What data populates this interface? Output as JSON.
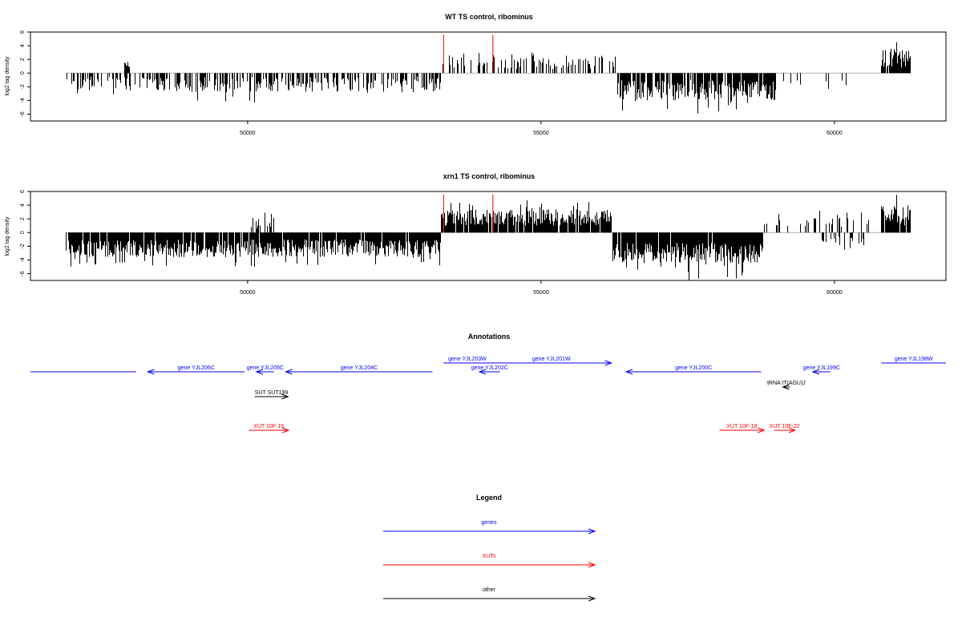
{
  "chart_data": [
    {
      "type": "bar",
      "title": "WT TS control, ribominus",
      "ylabel": "log2 tag density",
      "xlim": [
        46300,
        61900
      ],
      "ylim": [
        -7,
        6
      ],
      "x_ticks": [
        50000,
        55000,
        60000
      ],
      "x_tick_labels": [
        "50000",
        "55000",
        "60000"
      ],
      "y_ticks": [
        -6,
        -4,
        -2,
        0,
        2,
        4,
        6
      ],
      "y_tick_labels": [
        "-6",
        "-4",
        "-2",
        "0",
        "2",
        "4",
        "6"
      ],
      "baseline_range": [
        46900,
        61300
      ],
      "highlight_lines": [
        53340,
        54180
      ],
      "highlight_value": 5.6,
      "signal": [
        {
          "start": 46900,
          "end": 53300,
          "sign": -1,
          "density": 0.5,
          "amp": [
            0.5,
            2.8
          ],
          "max": 4.3
        },
        {
          "start": 47900,
          "end": 48000,
          "sign": 1,
          "density": 1,
          "amp": [
            0.8,
            1.6
          ],
          "max": 1.6
        },
        {
          "start": 53300,
          "end": 56300,
          "sign": 1,
          "density": 0.35,
          "amp": [
            0.6,
            2.6
          ],
          "max": 3.0
        },
        {
          "start": 56300,
          "end": 59000,
          "sign": -1,
          "density": 0.85,
          "amp": [
            1.0,
            4.0
          ],
          "max": 5.9
        },
        {
          "start": 59000,
          "end": 60700,
          "sign": -1,
          "density": 0.06,
          "amp": [
            1.0,
            2.0
          ],
          "max": 2.3
        },
        {
          "start": 60800,
          "end": 61300,
          "sign": 1,
          "density": 0.9,
          "amp": [
            0.8,
            3.6
          ],
          "max": 4.5
        }
      ]
    },
    {
      "type": "bar",
      "title": "xrn1 TS control, ribominus",
      "ylabel": "log2 tag density",
      "xlim": [
        46300,
        61900
      ],
      "ylim": [
        -7,
        6
      ],
      "x_ticks": [
        50000,
        55000,
        60000
      ],
      "x_tick_labels": [
        "50000",
        "55000",
        "60000"
      ],
      "y_ticks": [
        -6,
        -4,
        -2,
        0,
        2,
        4,
        6
      ],
      "y_tick_labels": [
        "-6",
        "-4",
        "-2",
        "0",
        "2",
        "4",
        "6"
      ],
      "baseline_range": [
        46900,
        61300
      ],
      "highlight_lines": [
        53340,
        54180
      ],
      "highlight_value": 5.6,
      "signal": [
        {
          "start": 46900,
          "end": 53300,
          "sign": -1,
          "density": 0.95,
          "amp": [
            1.0,
            3.6
          ],
          "max": 5.0
        },
        {
          "start": 50000,
          "end": 50500,
          "sign": 1,
          "density": 0.4,
          "amp": [
            0.5,
            2.2
          ],
          "max": 2.9
        },
        {
          "start": 53300,
          "end": 56200,
          "sign": 1,
          "density": 0.9,
          "amp": [
            1.0,
            3.4
          ],
          "max": 4.7
        },
        {
          "start": 56200,
          "end": 58800,
          "sign": -1,
          "density": 0.95,
          "amp": [
            1.5,
            4.5
          ],
          "max": 7.0
        },
        {
          "start": 58800,
          "end": 60600,
          "sign": 1,
          "density": 0.25,
          "amp": [
            0.5,
            2.2
          ],
          "max": 3.2
        },
        {
          "start": 59700,
          "end": 60500,
          "sign": -1,
          "density": 0.3,
          "amp": [
            0.5,
            2.0
          ],
          "max": 2.5
        },
        {
          "start": 60800,
          "end": 61300,
          "sign": 1,
          "density": 0.95,
          "amp": [
            1.0,
            4.0
          ],
          "max": 5.5
        }
      ]
    },
    {
      "type": "annotation_track",
      "title": "Annotations",
      "xlim": [
        46300,
        61900
      ],
      "features": [
        {
          "label": "",
          "start": 46300,
          "end": 48100,
          "strand": "none",
          "category": "genes",
          "row": 1
        },
        {
          "label": "gene YJL206C",
          "start": 48300,
          "end": 49950,
          "strand": "-",
          "category": "genes",
          "row": 1
        },
        {
          "label": "gene YJL205C",
          "start": 50150,
          "end": 50450,
          "strand": "-",
          "category": "genes",
          "row": 1
        },
        {
          "label": "gene YJL204C",
          "start": 50650,
          "end": 53150,
          "strand": "-",
          "category": "genes",
          "row": 1
        },
        {
          "label": "gene YJL203W",
          "start": 53340,
          "end": 54150,
          "strand": "none",
          "category": "genes",
          "row": 0
        },
        {
          "label": "gene YJL202C",
          "start": 53950,
          "end": 54300,
          "strand": "-",
          "category": "genes",
          "row": 1
        },
        {
          "label": "gene YJL201W",
          "start": 54150,
          "end": 56200,
          "strand": "+",
          "category": "genes",
          "row": 0
        },
        {
          "label": "gene YJL200C",
          "start": 56450,
          "end": 58750,
          "strand": "-",
          "category": "genes",
          "row": 1
        },
        {
          "label": "gene YJL199C",
          "start": 59630,
          "end": 59930,
          "strand": "-",
          "category": "genes",
          "row": 1
        },
        {
          "label": "gene YJL198W",
          "start": 60800,
          "end": 61900,
          "strand": "none",
          "category": "genes",
          "row": 0
        },
        {
          "label": "SUT SUT199",
          "start": 50120,
          "end": 50690,
          "strand": "+",
          "category": "other",
          "row": 3
        },
        {
          "label": "tRNA tT(AGU)J",
          "start": 59120,
          "end": 59240,
          "strand": "-",
          "category": "other",
          "row": 2
        },
        {
          "label": "XUT 10F-15",
          "start": 50020,
          "end": 50700,
          "strand": "+",
          "category": "XUTs",
          "row": 4
        },
        {
          "label": "XUT 10F-18",
          "start": 58040,
          "end": 58800,
          "strand": "+",
          "category": "XUTs",
          "row": 4
        },
        {
          "label": "XUT 10F-22",
          "start": 58970,
          "end": 59330,
          "strand": "+",
          "category": "XUTs",
          "row": 4
        }
      ]
    },
    {
      "type": "legend",
      "title": "Legend",
      "entries": [
        {
          "label": "genes",
          "color": "#0000ff"
        },
        {
          "label": "XUTs",
          "color": "#ff0000"
        },
        {
          "label": "other",
          "color": "#000000"
        }
      ]
    }
  ],
  "colors": {
    "genes": "#0000ff",
    "XUTs": "#ff0000",
    "other": "#000000",
    "highlight": "#ff0000",
    "signal": "#000000",
    "baseline": "#b0b0b0"
  }
}
